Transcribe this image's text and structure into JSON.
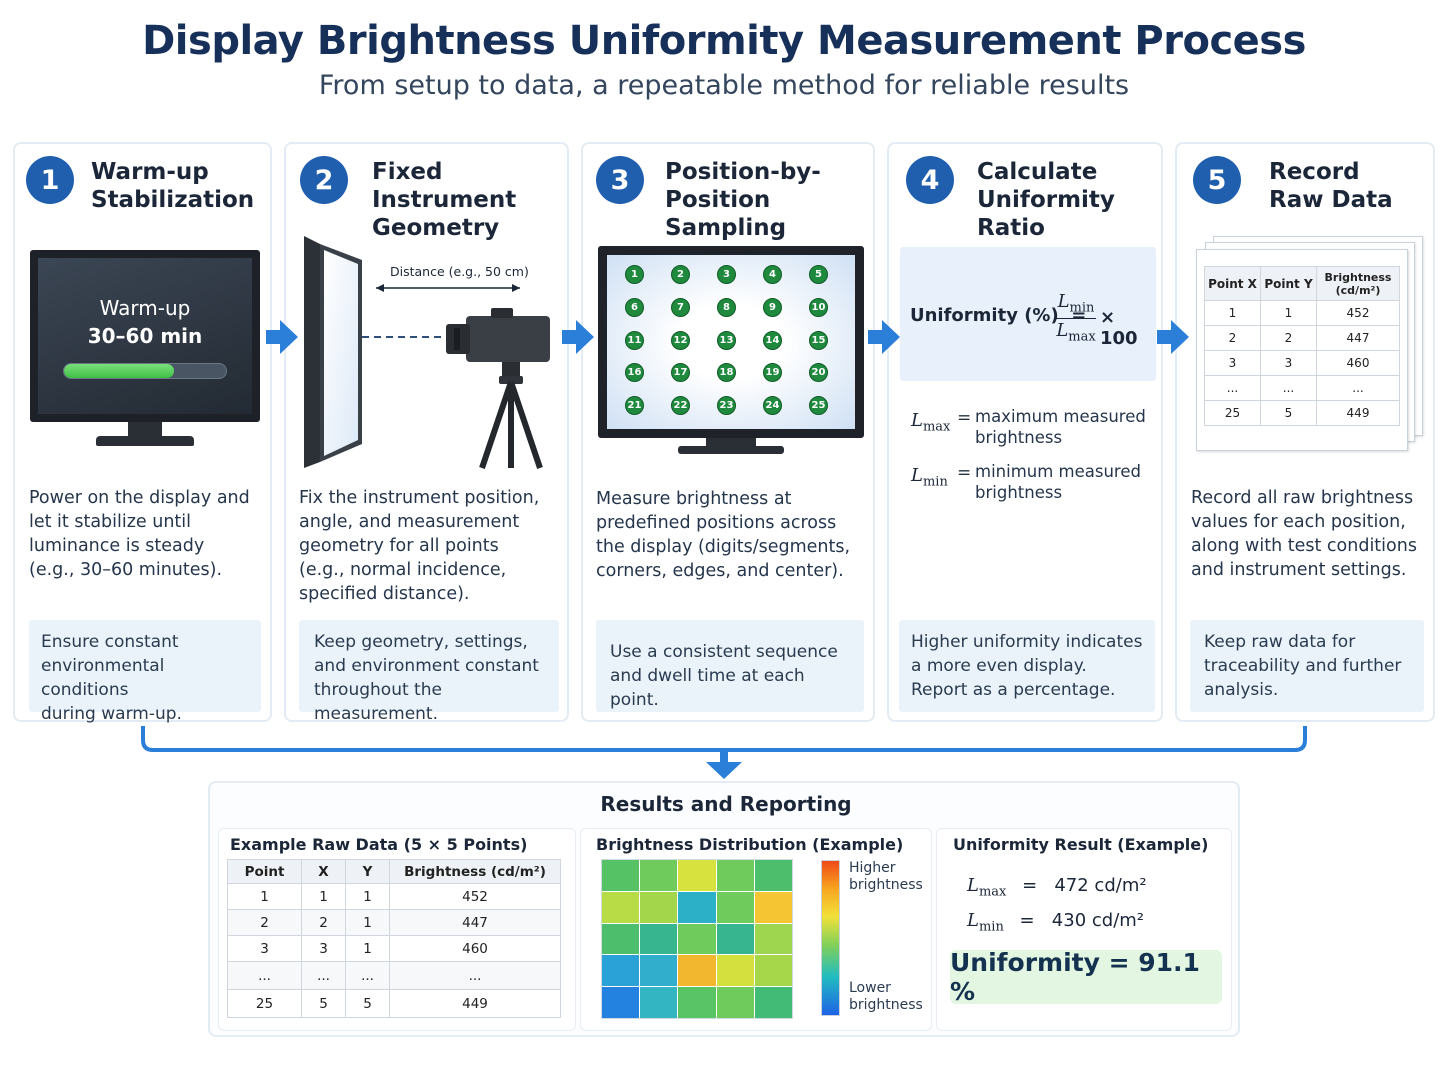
{
  "header": {
    "title": "Display Brightness Uniformity Measurement Process",
    "subtitle": "From setup to data, a repeatable method for reliable results"
  },
  "steps": [
    {
      "number": "1",
      "title_line1": "Warm-up",
      "title_line2": "Stabilization",
      "screen_line1": "Warm-up",
      "screen_line2": "30–60 min",
      "progress": 0.68,
      "desc": [
        "Power on the display and",
        "let it stabilize until",
        "luminance is steady",
        "(e.g., 30–60 minutes)."
      ],
      "note": [
        "Ensure constant",
        "environmental conditions",
        "during warm-up."
      ]
    },
    {
      "number": "2",
      "title_line1": "Fixed Instrument",
      "title_line2": "Geometry",
      "distance_label": "Distance (e.g., 50 cm)",
      "desc": [
        "Fix the instrument position,",
        "angle, and measurement",
        "geometry for all points",
        "(e.g., normal incidence,",
        "specified distance)."
      ],
      "note": [
        "Keep geometry, settings,",
        "and environment constant",
        "throughout the measurement."
      ]
    },
    {
      "number": "3",
      "title_line1": "Position-by-Position",
      "title_line2": "Sampling",
      "points": [
        "1",
        "2",
        "3",
        "4",
        "5",
        "6",
        "7",
        "8",
        "9",
        "10",
        "11",
        "12",
        "13",
        "14",
        "15",
        "16",
        "17",
        "18",
        "19",
        "20",
        "21",
        "22",
        "23",
        "24",
        "25"
      ],
      "desc": [
        "Measure brightness at",
        "predefined positions across",
        "the display (digits/segments,",
        "corners, edges, and center)."
      ],
      "note": [
        "Use a consistent sequence",
        "and dwell time at each point."
      ]
    },
    {
      "number": "4",
      "title_line1": "Calculate",
      "title_line2": "Uniformity Ratio",
      "formula_label": "Uniformity (%)  =",
      "formula_num": "L",
      "formula_num_sub": "min",
      "formula_den": "L",
      "formula_den_sub": "max",
      "formula_mult": "× 100",
      "def_max_sym": "L",
      "def_max_sub": "max",
      "def_max_text": [
        "maximum measured",
        "brightness"
      ],
      "def_min_sym": "L",
      "def_min_sub": "min",
      "def_min_text": [
        "minimum measured",
        "brightness"
      ],
      "def_eq": "=",
      "note": [
        "Higher uniformity indicates",
        "a more even display.",
        "Report as a percentage."
      ]
    },
    {
      "number": "5",
      "title_line1": "Record",
      "title_line2": "Raw Data",
      "table_headers": [
        "Point X",
        "Point Y",
        "Brightness (cd/m²)"
      ],
      "table_rows": [
        [
          "1",
          "1",
          "452"
        ],
        [
          "2",
          "2",
          "447"
        ],
        [
          "3",
          "3",
          "460"
        ],
        [
          "...",
          "...",
          "..."
        ],
        [
          "25",
          "5",
          "449"
        ]
      ],
      "desc": [
        "Record all raw brightness",
        "values for each position,",
        "along with test conditions",
        "and instrument settings."
      ],
      "note": [
        "Keep raw data for",
        "traceability and further",
        "analysis."
      ]
    }
  ],
  "results": {
    "title": "Results and Reporting",
    "raw": {
      "title": "Example Raw Data (5 × 5 Points)",
      "headers": [
        "Point",
        "X",
        "Y",
        "Brightness (cd/m²)"
      ],
      "rows": [
        [
          "1",
          "1",
          "1",
          "452"
        ],
        [
          "2",
          "2",
          "1",
          "447"
        ],
        [
          "3",
          "3",
          "1",
          "460"
        ],
        [
          "...",
          "...",
          "...",
          "..."
        ],
        [
          "25",
          "5",
          "5",
          "449"
        ]
      ]
    },
    "distribution": {
      "title": "Brightness Distribution (Example)",
      "legend_high": [
        "Higher",
        "brightness"
      ],
      "legend_low": [
        "Lower",
        "brightness"
      ],
      "cells": [
        [
          "#55c266",
          "#6fcc5c",
          "#d8e23e",
          "#6fcc5c",
          "#4dbf6c"
        ],
        [
          "#b8dc46",
          "#a4d64c",
          "#2bb0c8",
          "#6fcc5c",
          "#f5c533"
        ],
        [
          "#4dbf6c",
          "#36b58e",
          "#6fcc5c",
          "#36b58e",
          "#9fd650"
        ],
        [
          "#2aa2d8",
          "#30aecb",
          "#f2b72e",
          "#d4e03e",
          "#a6d74b"
        ],
        [
          "#2382e0",
          "#33b5c2",
          "#59c466",
          "#6fcc5c",
          "#42bb76"
        ]
      ]
    },
    "uniformity": {
      "title": "Uniformity Result (Example)",
      "lmax_sym": "L",
      "lmax_sub": "max",
      "lmax_value": "=   472 cd/m²",
      "lmin_sym": "L",
      "lmin_sub": "min",
      "lmin_value": "=   430 cd/m²",
      "result": "Uniformity = 91.1 %"
    }
  }
}
